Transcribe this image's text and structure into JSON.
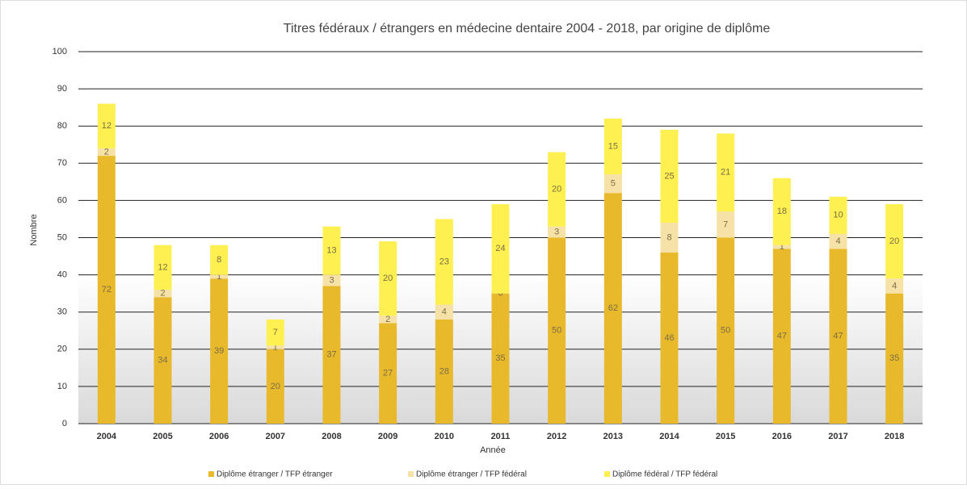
{
  "chart_data": {
    "type": "stacked_bar",
    "title": "Titres fédéraux / étrangers en médecine dentaire 2004 - 2018, par origine de diplôme",
    "x_label": "Année",
    "y_label": "Nombre",
    "categories": [
      "2004",
      "2005",
      "2006",
      "2007",
      "2008",
      "2009",
      "2010",
      "2011",
      "2012",
      "2013",
      "2014",
      "2015",
      "2016",
      "2017",
      "2018"
    ],
    "series": [
      {
        "name": "Diplôme étranger / TFP étranger",
        "color": "#e8b92b",
        "values": [
          72,
          34,
          39,
          20,
          37,
          27,
          28,
          35,
          50,
          62,
          46,
          50,
          47,
          47,
          35
        ]
      },
      {
        "name": "Diplôme étranger / TFP fédéral",
        "color": "#f6e2a6",
        "values": [
          2,
          2,
          1,
          1,
          3,
          2,
          4,
          0,
          3,
          5,
          8,
          7,
          1,
          4,
          4
        ]
      },
      {
        "name": "Diplôme fédéral / TFP fédéral",
        "color": "#fdf050",
        "values": [
          12,
          12,
          8,
          7,
          13,
          20,
          23,
          24,
          20,
          15,
          25,
          21,
          18,
          10,
          20
        ]
      }
    ],
    "ylim": [
      0,
      100
    ],
    "yticks": [
      0,
      10,
      20,
      30,
      40,
      50,
      60,
      70,
      80,
      90,
      100
    ],
    "grid": true,
    "legend": "bottom"
  }
}
